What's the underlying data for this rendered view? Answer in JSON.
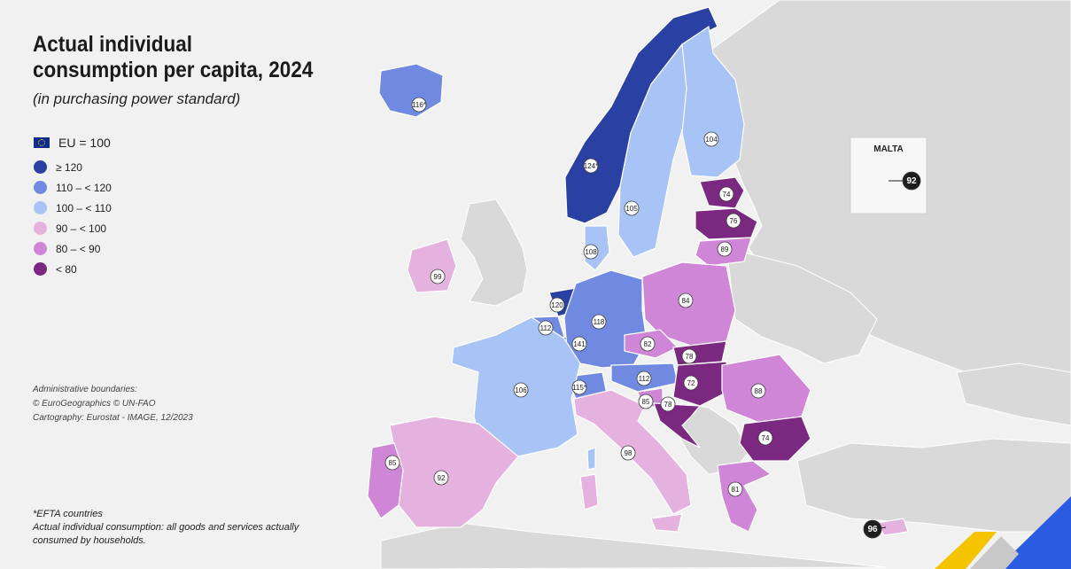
{
  "title": "Actual individual consumption per capita, 2024",
  "subtitle": "(in purchasing power standard)",
  "legend": {
    "eu_label": "EU = 100",
    "classes": [
      {
        "label": "≥ 120",
        "color": "#2a40a3"
      },
      {
        "label": "110 – < 120",
        "color": "#6f8ae0"
      },
      {
        "label": "100 – < 110",
        "color": "#a8c3f5"
      },
      {
        "label": "90 – < 100",
        "color": "#e5b2df"
      },
      {
        "label": "80 – < 90",
        "color": "#cf86d6"
      },
      {
        "label": "< 80",
        "color": "#7a2880"
      }
    ]
  },
  "credits": {
    "line1": "Administrative boundaries:",
    "line2": "© EuroGeographics © UN-FAO",
    "line3": "Cartography: Eurostat - IMAGE, 12/2023"
  },
  "footnotes": {
    "efta": "*EFTA countries",
    "definition": "Actual individual consumption: all goods and services actually consumed by households."
  },
  "inset": {
    "title": "MALTA"
  },
  "countries": [
    {
      "name": "Iceland",
      "label": "116*",
      "value": 116,
      "cls": 1
    },
    {
      "name": "Norway",
      "label": "124*",
      "value": 124,
      "cls": 0
    },
    {
      "name": "Sweden",
      "label": "105",
      "value": 105,
      "cls": 2
    },
    {
      "name": "Finland",
      "label": "104",
      "value": 104,
      "cls": 2
    },
    {
      "name": "Estonia",
      "label": "74",
      "value": 74,
      "cls": 5
    },
    {
      "name": "Latvia",
      "label": "76",
      "value": 76,
      "cls": 5
    },
    {
      "name": "Lithuania",
      "label": "89",
      "value": 89,
      "cls": 4
    },
    {
      "name": "Denmark",
      "label": "108",
      "value": 108,
      "cls": 2
    },
    {
      "name": "Ireland",
      "label": "99",
      "value": 99,
      "cls": 3
    },
    {
      "name": "Netherlands",
      "label": "120",
      "value": 120,
      "cls": 0
    },
    {
      "name": "Belgium",
      "label": "112",
      "value": 112,
      "cls": 1
    },
    {
      "name": "Luxembourg",
      "label": "141",
      "value": 141,
      "cls": 0
    },
    {
      "name": "Germany",
      "label": "118",
      "value": 118,
      "cls": 1
    },
    {
      "name": "Poland",
      "label": "84",
      "value": 84,
      "cls": 4
    },
    {
      "name": "Czechia",
      "label": "82",
      "value": 82,
      "cls": 4
    },
    {
      "name": "Slovakia",
      "label": "78",
      "value": 78,
      "cls": 5
    },
    {
      "name": "Austria",
      "label": "112",
      "value": 112,
      "cls": 1
    },
    {
      "name": "Switzerland",
      "label": "115*",
      "value": 115,
      "cls": 1
    },
    {
      "name": "Hungary",
      "label": "72",
      "value": 72,
      "cls": 5
    },
    {
      "name": "Slovenia",
      "label": "85",
      "value": 85,
      "cls": 4
    },
    {
      "name": "Croatia",
      "label": "78",
      "value": 78,
      "cls": 5
    },
    {
      "name": "Romania",
      "label": "88",
      "value": 88,
      "cls": 4
    },
    {
      "name": "Bulgaria",
      "label": "74",
      "value": 74,
      "cls": 5
    },
    {
      "name": "Greece",
      "label": "81",
      "value": 81,
      "cls": 4
    },
    {
      "name": "Italy",
      "label": "98",
      "value": 98,
      "cls": 3
    },
    {
      "name": "France",
      "label": "106",
      "value": 106,
      "cls": 2
    },
    {
      "name": "Spain",
      "label": "92",
      "value": 92,
      "cls": 3
    },
    {
      "name": "Portugal",
      "label": "85",
      "value": 85,
      "cls": 4
    },
    {
      "name": "Malta",
      "label": "92",
      "value": 92,
      "cls": 3
    },
    {
      "name": "Cyprus",
      "label": "96",
      "value": 96,
      "cls": 3
    }
  ],
  "colors": {
    "background": "#f1f1f1",
    "non_eu": "#d9d9d9",
    "sea": "#f1f1f1",
    "label_bubble": "#ffffff",
    "dark_bubble": "#1e1e1e"
  }
}
